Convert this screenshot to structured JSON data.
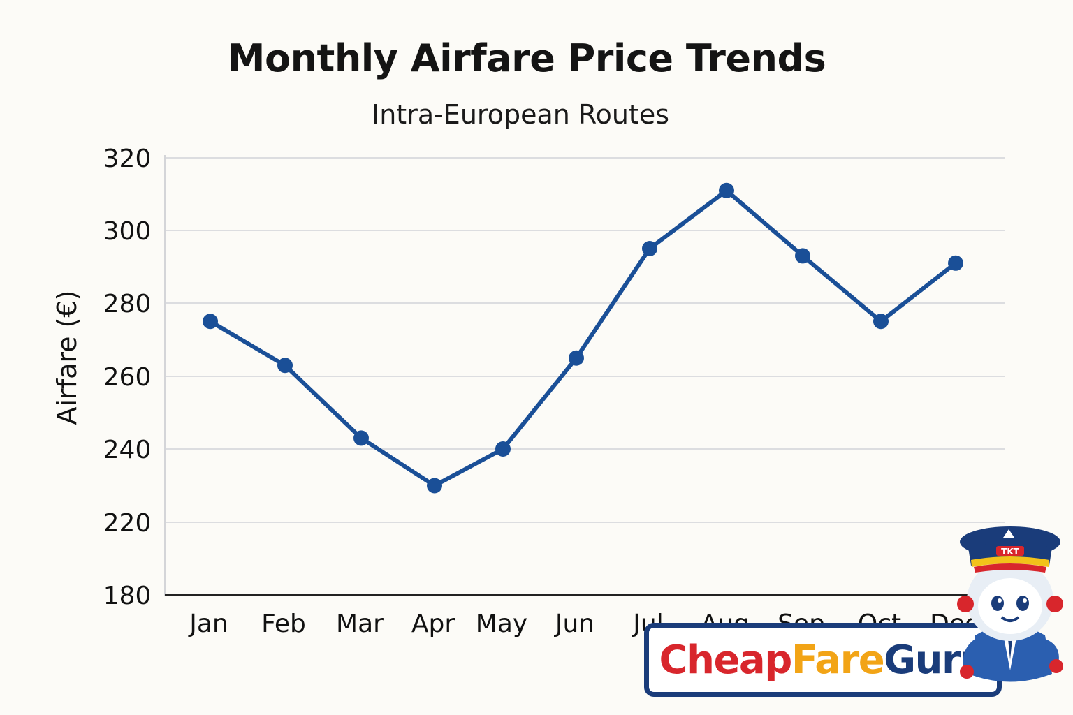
{
  "chart_data": {
    "type": "line",
    "title": "Monthly Airfare Price Trends",
    "subtitle": "Intra-European Routes",
    "xlabel": "",
    "ylabel": "Airfare (€)",
    "categories": [
      "Jan",
      "Feb",
      "Mar",
      "Apr",
      "May",
      "Jun",
      "Jul",
      "Aug",
      "Sep",
      "Oct",
      "Dec"
    ],
    "series": [
      {
        "values": [
          275,
          263,
          243,
          230,
          240,
          265,
          295,
          311,
          293,
          275,
          291
        ]
      }
    ],
    "y_ticks": [
      "180",
      "220",
      "240",
      "260",
      "280",
      "300",
      "320"
    ],
    "ylim": [
      180,
      320
    ],
    "grid": true,
    "legend": "none",
    "line_color": "#1a4f97",
    "grid_color": "#dcdde0"
  },
  "logo": {
    "part1": "Cheap",
    "part2": "Fare",
    "part3": "Guru",
    "colors": {
      "cheap": "#d8262c",
      "fare": "#f2a416",
      "guru": "#1a3c7a"
    }
  },
  "mascot": {
    "icon": "pilot-mascot-icon",
    "cap_badge": "TKT"
  }
}
